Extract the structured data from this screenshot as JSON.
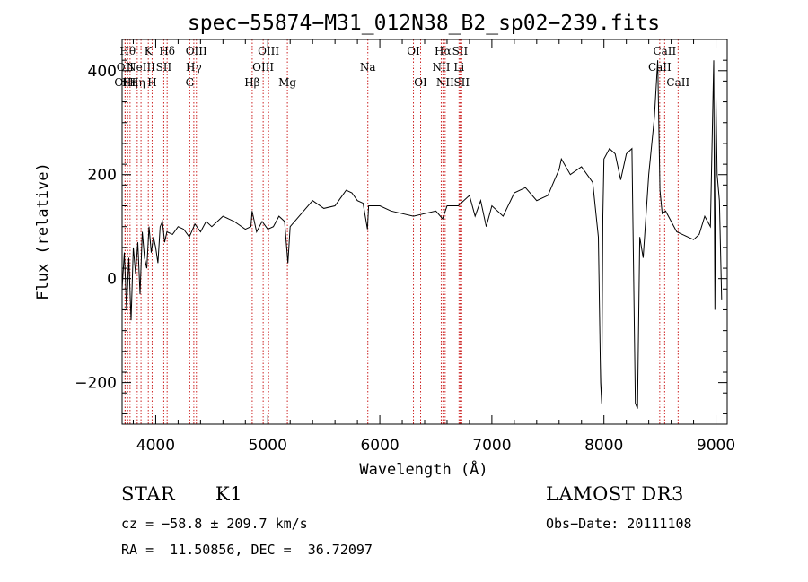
{
  "chart_data": {
    "type": "line",
    "title": "spec−55874−M31_012N38_B2_sp02−239.fits",
    "xlabel": "Wavelength (Å)",
    "ylabel": "Flux (relative)",
    "xlim": [
      3700,
      9100
    ],
    "ylim": [
      -280,
      460
    ],
    "xticks": [
      4000,
      5000,
      6000,
      7000,
      8000,
      9000
    ],
    "yticks": [
      -200,
      0,
      200,
      400
    ],
    "ytick_labels": [
      "−200",
      "0",
      "200",
      "400"
    ],
    "grid": false,
    "line_color": "#000000",
    "marker_color": "#cc2222",
    "series": [
      {
        "x": [
          3700,
          3720,
          3740,
          3760,
          3780,
          3800,
          3820,
          3840,
          3860,
          3880,
          3900,
          3920,
          3940,
          3960,
          3980,
          4000,
          4020,
          4040,
          4060,
          4080,
          4100,
          4150,
          4200,
          4250,
          4300,
          4350,
          4400,
          4450,
          4500,
          4600,
          4700,
          4800,
          4850,
          4860,
          4900,
          4950,
          5000,
          5050,
          5100,
          5150,
          5180,
          5200,
          5300,
          5400,
          5500,
          5600,
          5700,
          5750,
          5800,
          5850,
          5890,
          5900,
          6000,
          6100,
          6200,
          6300,
          6400,
          6500,
          6560,
          6600,
          6700,
          6800,
          6850,
          6900,
          6950,
          7000,
          7100,
          7200,
          7300,
          7400,
          7500,
          7550,
          7600,
          7620,
          7700,
          7800,
          7900,
          7950,
          7970,
          7980,
          7990,
          8000,
          8050,
          8100,
          8150,
          8200,
          8250,
          8280,
          8300,
          8320,
          8350,
          8400,
          8450,
          8480,
          8500,
          8520,
          8550,
          8600,
          8650,
          8700,
          8750,
          8800,
          8850,
          8900,
          8950,
          8980,
          8990,
          9000,
          9010,
          9030,
          9050
        ],
        "y": [
          -20,
          50,
          -60,
          40,
          -80,
          60,
          10,
          70,
          -30,
          90,
          40,
          20,
          100,
          50,
          80,
          60,
          30,
          100,
          110,
          70,
          90,
          85,
          100,
          95,
          80,
          105,
          90,
          110,
          100,
          120,
          110,
          95,
          100,
          130,
          90,
          110,
          95,
          100,
          120,
          110,
          30,
          100,
          125,
          150,
          135,
          140,
          170,
          165,
          150,
          145,
          95,
          140,
          140,
          130,
          125,
          120,
          125,
          130,
          115,
          140,
          140,
          160,
          120,
          150,
          100,
          140,
          120,
          165,
          175,
          150,
          160,
          185,
          210,
          230,
          200,
          215,
          185,
          80,
          -200,
          -240,
          120,
          230,
          250,
          240,
          190,
          240,
          250,
          -240,
          -250,
          80,
          40,
          200,
          310,
          420,
          170,
          125,
          130,
          110,
          90,
          85,
          80,
          75,
          85,
          120,
          100,
          420,
          -60,
          350,
          200,
          150,
          -40
        ]
      }
    ],
    "line_markers": [
      {
        "x": 3750,
        "label": "Hθ",
        "row": 0
      },
      {
        "x": 3727,
        "label": "OII",
        "row": 1
      },
      {
        "x": 3727,
        "label": "OIII",
        "row": 2
      },
      {
        "x": 3771,
        "label": "Hη",
        "row": 2
      },
      {
        "x": 3835,
        "label": "Hη",
        "row": 2
      },
      {
        "x": 3869,
        "label": "NeIII",
        "row": 1
      },
      {
        "x": 3934,
        "label": "K",
        "row": 0
      },
      {
        "x": 3968,
        "label": "H",
        "row": 2
      },
      {
        "x": 4072,
        "label": "SII",
        "row": 1
      },
      {
        "x": 4102,
        "label": "Hδ",
        "row": 0
      },
      {
        "x": 4304,
        "label": "G",
        "row": 2
      },
      {
        "x": 4340,
        "label": "Hγ",
        "row": 1
      },
      {
        "x": 4363,
        "label": "OIII",
        "row": 0
      },
      {
        "x": 4861,
        "label": "Hβ",
        "row": 2
      },
      {
        "x": 4959,
        "label": "OIII",
        "row": 1
      },
      {
        "x": 5007,
        "label": "OIII",
        "row": 0
      },
      {
        "x": 5175,
        "label": "Mg",
        "row": 2
      },
      {
        "x": 5893,
        "label": "Na",
        "row": 1
      },
      {
        "x": 6300,
        "label": "OI",
        "row": 0
      },
      {
        "x": 6364,
        "label": "OI",
        "row": 2
      },
      {
        "x": 6548,
        "label": "NII",
        "row": 1
      },
      {
        "x": 6563,
        "label": "Hα",
        "row": 0
      },
      {
        "x": 6583,
        "label": "NII",
        "row": 2
      },
      {
        "x": 6707,
        "label": "Li",
        "row": 1
      },
      {
        "x": 6716,
        "label": "SII",
        "row": 0
      },
      {
        "x": 6731,
        "label": "SII",
        "row": 2
      },
      {
        "x": 8498,
        "label": "CaII",
        "row": 1
      },
      {
        "x": 8542,
        "label": "CaII",
        "row": 0
      },
      {
        "x": 8662,
        "label": "CaII",
        "row": 2
      }
    ]
  },
  "info": {
    "class": "STAR",
    "subclass": "K1",
    "survey": "LAMOST DR3",
    "cz": "cz = −58.8 ± 209.7 km/s",
    "obs_date": "Obs−Date: 20111108",
    "radec": "RA =  11.50856, DEC =  36.72097"
  }
}
